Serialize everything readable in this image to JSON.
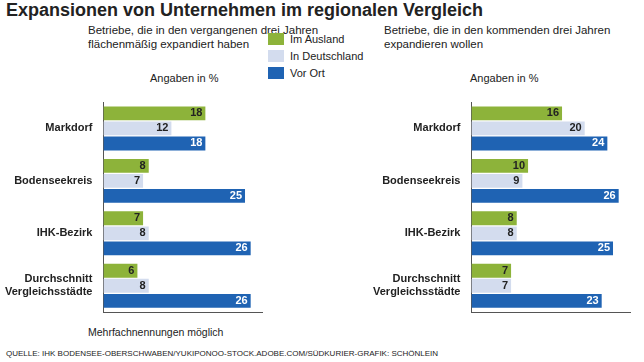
{
  "title": "Expansionen von Unternehmen im regionalen Vergleich",
  "note": "Mehrfachnennungen möglich",
  "source": "QUELLE: IHK BODENSEE-OBERSCHWABEN/YUKIPONOO-STOCK.ADOBE.COM/SÜDKURIER-GRAFIK: SCHÖNLEIN",
  "chart_data": [
    {
      "type": "bar",
      "orientation": "horizontal",
      "title": "Betriebe, die in den vergangenen drei Jahren flächenmäßig expandiert haben",
      "subtitle": "Angaben in %",
      "categories": [
        "Markdorf",
        "Bodenseekreis",
        "IHK-Bezirk",
        "Durchschnitt Vergleichsstädte"
      ],
      "series": [
        {
          "name": "Im Ausland",
          "color": "#8db33a",
          "values": [
            18,
            8,
            7,
            6
          ]
        },
        {
          "name": "In Deutschland",
          "color": "#d3dcee",
          "values": [
            12,
            7,
            8,
            8
          ]
        },
        {
          "name": "Vor Ort",
          "color": "#1f63b3",
          "values": [
            18,
            25,
            26,
            26
          ]
        }
      ],
      "xlim": [
        0,
        28
      ],
      "xticks": [],
      "grid": false,
      "data_labels": true,
      "tick_labels": "y",
      "legend": "top"
    },
    {
      "type": "bar",
      "orientation": "horizontal",
      "title": "Betriebe, die in den kommenden drei Jahren expandieren wollen",
      "subtitle": "Angaben in %",
      "categories": [
        "Markdorf",
        "Bodenseekreis",
        "IHK-Bezirk",
        "Durchschnitt Vergleichsstädte"
      ],
      "series": [
        {
          "name": "Im Ausland",
          "color": "#8db33a",
          "values": [
            16,
            10,
            8,
            7
          ]
        },
        {
          "name": "In Deutschland",
          "color": "#d3dcee",
          "values": [
            20,
            9,
            8,
            7
          ]
        },
        {
          "name": "Vor Ort",
          "color": "#1f63b3",
          "values": [
            24,
            26,
            25,
            23
          ]
        }
      ],
      "xlim": [
        0,
        28
      ],
      "xticks": [],
      "grid": false,
      "data_labels": true,
      "tick_labels": "y",
      "legend": "top"
    }
  ]
}
